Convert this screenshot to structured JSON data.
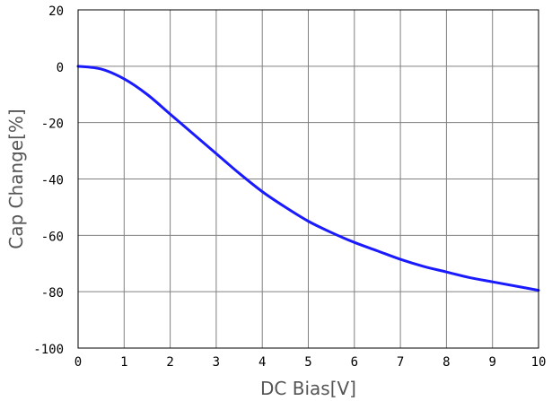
{
  "chart_data": {
    "type": "line",
    "title": "",
    "xlabel": "DC Bias[V]",
    "ylabel": "Cap Change[%]",
    "xlim": [
      0,
      10
    ],
    "ylim": [
      -100,
      20
    ],
    "xticks": [
      "0",
      "1",
      "2",
      "3",
      "4",
      "5",
      "6",
      "7",
      "8",
      "9",
      "10"
    ],
    "yticks": [
      "20",
      "0",
      "-20",
      "-40",
      "-60",
      "-80",
      "-100"
    ],
    "grid": true,
    "legend": "none",
    "series": [
      {
        "color": "#1a1aff",
        "x": [
          0,
          0.5,
          1,
          1.5,
          2,
          2.5,
          3,
          3.5,
          4,
          4.5,
          5,
          5.5,
          6,
          6.5,
          7,
          7.5,
          8,
          8.5,
          9,
          9.5,
          10
        ],
        "y": [
          0,
          -1,
          -4.5,
          -10,
          -17,
          -24,
          -31,
          -38,
          -44.5,
          -50,
          -55,
          -59,
          -62.5,
          -65.5,
          -68.5,
          -71,
          -73,
          -75,
          -76.5,
          -78,
          -79.5
        ]
      }
    ]
  },
  "colors": {
    "plot_border": "#000000",
    "grid": "#808080",
    "line": "#1a1aff"
  }
}
